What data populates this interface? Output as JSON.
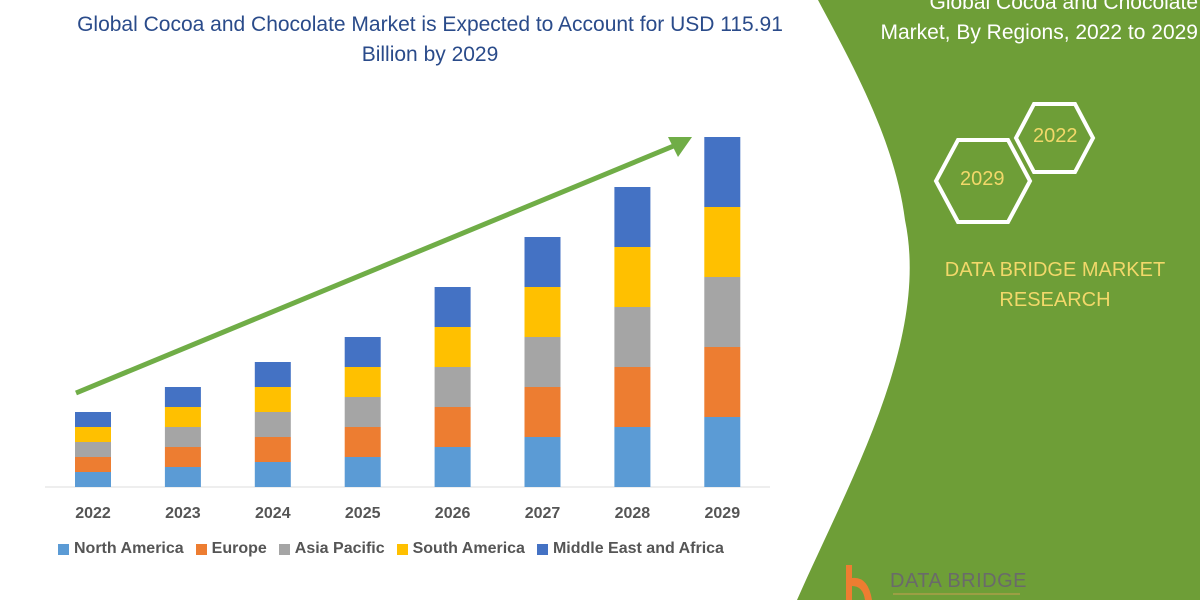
{
  "title": "Global Cocoa and Chocolate Market is Expected to Account for USD 115.91 Billion by 2029",
  "side_panel": {
    "title_line1": "Global Cocoa and Chocolate",
    "title_line2": "Market, By Regions, 2022 to 2029",
    "hex_start": "2022",
    "hex_end": "2029",
    "brand_line1": "DATA BRIDGE MARKET",
    "brand_line2": "RESEARCH",
    "logo_text": "DATA BRIDGE",
    "color": "#6e9e37"
  },
  "chart_data": {
    "type": "bar",
    "stacked": true,
    "title": "Global Cocoa and Chocolate Market is Expected to Account for USD 115.91 Billion by 2029",
    "xlabel": "",
    "ylabel": "",
    "y_axis_shown": false,
    "grid": false,
    "legend_position": "bottom",
    "trend_arrow": true,
    "categories": [
      "2022",
      "2023",
      "2024",
      "2025",
      "2026",
      "2027",
      "2028",
      "2029"
    ],
    "series": [
      {
        "name": "North America",
        "color": "#5b9bd5",
        "values": [
          15,
          20,
          25,
          30,
          40,
          50,
          60,
          70
        ]
      },
      {
        "name": "Europe",
        "color": "#ed7d31",
        "values": [
          15,
          20,
          25,
          30,
          40,
          50,
          60,
          70
        ]
      },
      {
        "name": "Asia Pacific",
        "color": "#a5a5a5",
        "values": [
          15,
          20,
          25,
          30,
          40,
          50,
          60,
          70
        ]
      },
      {
        "name": "South America",
        "color": "#ffc000",
        "values": [
          15,
          20,
          25,
          30,
          40,
          50,
          60,
          70
        ]
      },
      {
        "name": "Middle East and Africa",
        "color": "#4472c4",
        "values": [
          15,
          20,
          25,
          30,
          40,
          50,
          60,
          70
        ]
      }
    ]
  }
}
